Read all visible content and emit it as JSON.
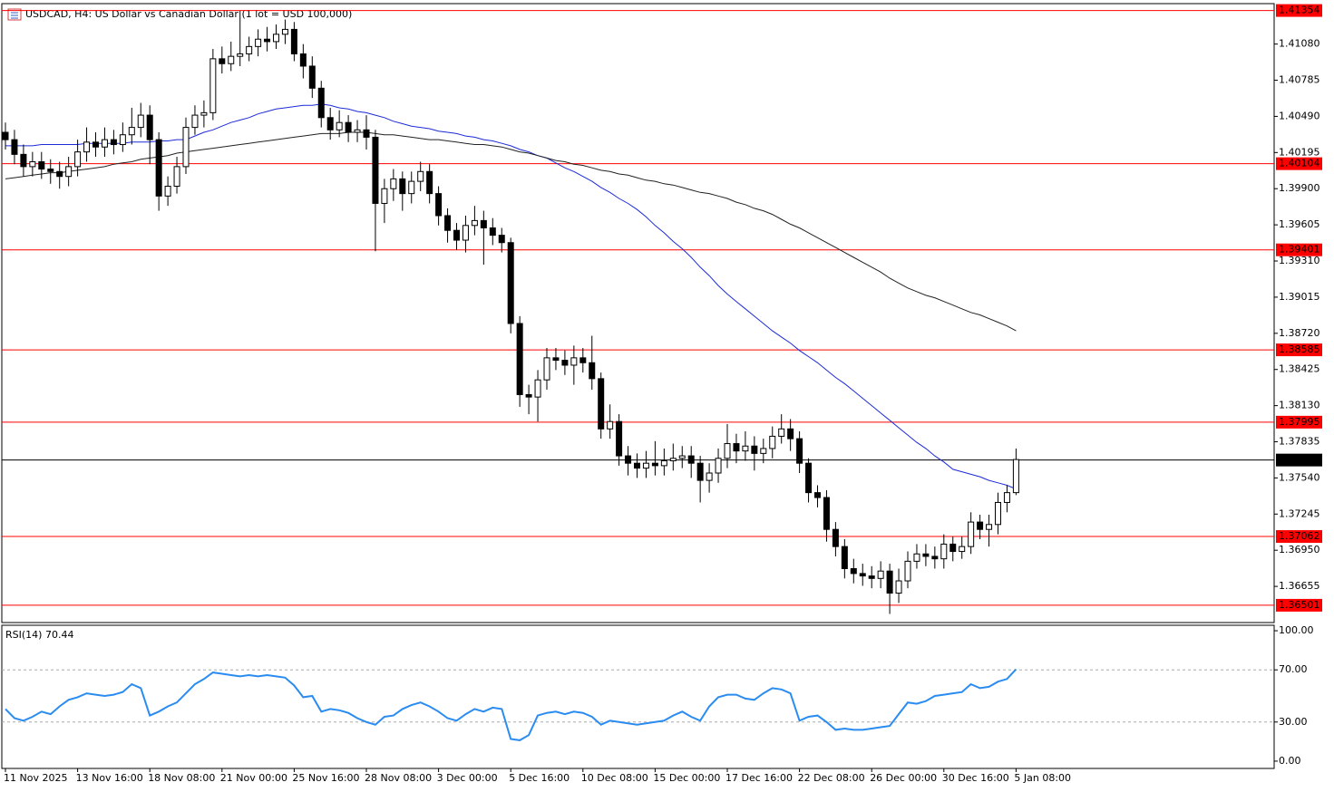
{
  "chart_data": [
    {
      "type": "candlestick",
      "title": "USDCAD, H4:  US Dollar vs Canadian Dollar (1 lot = USD 100,000)",
      "x": [
        "11 Nov 2025",
        null,
        null,
        null,
        null,
        null,
        null,
        null,
        "13 Nov 16:00",
        null,
        null,
        null,
        null,
        null,
        null,
        null,
        "18 Nov 08:00",
        null,
        null,
        null,
        null,
        null,
        null,
        null,
        "21 Nov 00:00",
        null,
        null,
        null,
        null,
        null,
        null,
        null,
        "25 Nov 16:00",
        null,
        null,
        null,
        null,
        null,
        null,
        null,
        "28 Nov 08:00",
        null,
        null,
        null,
        null,
        null,
        null,
        null,
        "3 Dec 00:00",
        null,
        null,
        null,
        null,
        null,
        null,
        null,
        "5 Dec 16:00",
        null,
        null,
        null,
        null,
        null,
        null,
        null,
        "10 Dec 08:00",
        null,
        null,
        null,
        null,
        null,
        null,
        null,
        "15 Dec 00:00",
        null,
        null,
        null,
        null,
        null,
        null,
        null,
        "17 Dec 16:00",
        null,
        null,
        null,
        null,
        null,
        null,
        null,
        "22 Dec 08:00",
        null,
        null,
        null,
        null,
        null,
        null,
        null,
        "26 Dec 00:00",
        null,
        null,
        null,
        null,
        null,
        null,
        null,
        "30 Dec 16:00",
        null,
        null,
        null,
        null,
        null,
        null,
        null,
        "5 Jan 08:00"
      ],
      "open": [
        1.4036,
        1.403,
        1.4018,
        1.4008,
        1.4012,
        1.4006,
        1.4004,
        1.4,
        1.4008,
        1.402,
        1.4028,
        1.4024,
        1.403,
        1.4026,
        1.4034,
        1.404,
        1.405,
        1.403,
        1.3984,
        1.3992,
        1.4008,
        1.404,
        1.405,
        1.4052,
        1.4096,
        1.4092,
        1.4098,
        1.41,
        1.4106,
        1.4112,
        1.411,
        1.4116,
        1.412,
        1.41,
        1.409,
        1.4072,
        1.4048,
        1.4038,
        1.4044,
        1.4036,
        1.4038,
        1.4032,
        1.3978,
        1.399,
        1.3998,
        1.3986,
        1.3996,
        1.4004,
        1.3986,
        1.3968,
        1.3956,
        1.3948,
        1.396,
        1.3964,
        1.3958,
        1.3952,
        1.3946,
        1.388,
        1.3822,
        1.382,
        1.3834,
        1.3852,
        1.385,
        1.3846,
        1.3852,
        1.3848,
        1.3835,
        1.3794,
        1.38,
        1.3772,
        1.3766,
        1.3762,
        1.3766,
        1.3764,
        1.3768,
        1.377,
        1.3772,
        1.3766,
        1.3752,
        1.3758,
        1.377,
        1.3782,
        1.3776,
        1.378,
        1.3774,
        1.3778,
        1.3788,
        1.3794,
        1.3786,
        1.3766,
        1.3742,
        1.3738,
        1.3712,
        1.3698,
        1.368,
        1.3676,
        1.3674,
        1.3672,
        1.3678,
        1.366,
        1.367,
        1.3686,
        1.3692,
        1.369,
        1.3688,
        1.37,
        1.3694,
        1.3698,
        1.3718,
        1.3712,
        1.3716,
        1.3734,
        1.3742
      ],
      "high": [
        1.4044,
        1.4038,
        1.4026,
        1.402,
        1.402,
        1.4014,
        1.4012,
        1.4016,
        1.403,
        1.404,
        1.4036,
        1.404,
        1.4038,
        1.4044,
        1.4056,
        1.406,
        1.4058,
        1.4036,
        1.4,
        1.4016,
        1.4048,
        1.4058,
        1.4062,
        1.4104,
        1.4106,
        1.411,
        1.4135,
        1.4114,
        1.412,
        1.4122,
        1.4124,
        1.4128,
        1.4126,
        1.4108,
        1.4098,
        1.4078,
        1.4056,
        1.4054,
        1.405,
        1.4046,
        1.405,
        1.4038,
        1.3998,
        1.4006,
        1.4004,
        1.4004,
        1.4012,
        1.401,
        1.3992,
        1.3974,
        1.3962,
        1.3968,
        1.3976,
        1.3972,
        1.3966,
        1.3958,
        1.395,
        1.3886,
        1.383,
        1.3842,
        1.386,
        1.386,
        1.3858,
        1.3862,
        1.386,
        1.387,
        1.384,
        1.3814,
        1.3806,
        1.378,
        1.3774,
        1.3776,
        1.3784,
        1.3778,
        1.3782,
        1.378,
        1.378,
        1.3772,
        1.3766,
        1.3778,
        1.3798,
        1.379,
        1.3792,
        1.3788,
        1.3786,
        1.3796,
        1.3806,
        1.3802,
        1.3792,
        1.377,
        1.3748,
        1.3744,
        1.3718,
        1.3704,
        1.3688,
        1.3684,
        1.3682,
        1.3686,
        1.3684,
        1.368,
        1.3694,
        1.37,
        1.37,
        1.3698,
        1.3708,
        1.3706,
        1.3706,
        1.3726,
        1.3724,
        1.3724,
        1.3742,
        1.3748,
        1.3778
      ],
      "low": [
        1.4022,
        1.401,
        1.4,
        1.4,
        1.3998,
        1.3994,
        1.399,
        1.3992,
        1.4,
        1.4012,
        1.4016,
        1.4016,
        1.4018,
        1.402,
        1.4026,
        1.4032,
        1.401,
        1.3972,
        1.3976,
        1.3986,
        1.4002,
        1.4034,
        1.404,
        1.4046,
        1.4084,
        1.4086,
        1.409,
        1.4094,
        1.4098,
        1.4102,
        1.4104,
        1.4108,
        1.4094,
        1.408,
        1.4064,
        1.404,
        1.403,
        1.4032,
        1.4028,
        1.4028,
        1.4022,
        1.3939,
        1.3962,
        1.398,
        1.3972,
        1.3978,
        1.3988,
        1.3978,
        1.396,
        1.3946,
        1.394,
        1.3938,
        1.3952,
        1.3928,
        1.3944,
        1.3938,
        1.3872,
        1.3812,
        1.3806,
        1.38,
        1.3826,
        1.3842,
        1.3838,
        1.383,
        1.384,
        1.3826,
        1.3786,
        1.3786,
        1.3764,
        1.3756,
        1.3754,
        1.3754,
        1.3756,
        1.3756,
        1.376,
        1.3762,
        1.3754,
        1.3734,
        1.3742,
        1.375,
        1.3762,
        1.3766,
        1.3768,
        1.376,
        1.3766,
        1.377,
        1.3782,
        1.3776,
        1.3758,
        1.3734,
        1.373,
        1.3702,
        1.369,
        1.3672,
        1.3668,
        1.3666,
        1.3664,
        1.3664,
        1.3643,
        1.3652,
        1.3664,
        1.368,
        1.3682,
        1.368,
        1.368,
        1.3686,
        1.3688,
        1.3692,
        1.3704,
        1.3698,
        1.3708,
        1.3726,
        1.374
      ],
      "close": [
        1.403,
        1.4018,
        1.4008,
        1.4012,
        1.4006,
        1.4004,
        1.4,
        1.4008,
        1.402,
        1.4028,
        1.4024,
        1.403,
        1.4026,
        1.4034,
        1.404,
        1.405,
        1.403,
        1.3984,
        1.3992,
        1.4008,
        1.404,
        1.405,
        1.4052,
        1.4096,
        1.4092,
        1.4098,
        1.41,
        1.4106,
        1.4112,
        1.411,
        1.4116,
        1.412,
        1.41,
        1.409,
        1.4072,
        1.4048,
        1.4038,
        1.4044,
        1.4036,
        1.4038,
        1.4032,
        1.3978,
        1.399,
        1.3998,
        1.3986,
        1.3996,
        1.4004,
        1.3986,
        1.3968,
        1.3956,
        1.3948,
        1.396,
        1.3964,
        1.3958,
        1.3952,
        1.3946,
        1.388,
        1.3822,
        1.382,
        1.3834,
        1.3852,
        1.385,
        1.3846,
        1.3852,
        1.3848,
        1.3835,
        1.3794,
        1.38,
        1.3772,
        1.3766,
        1.3762,
        1.3766,
        1.3764,
        1.3768,
        1.377,
        1.3772,
        1.3766,
        1.3752,
        1.3758,
        1.377,
        1.3782,
        1.3776,
        1.378,
        1.3774,
        1.3778,
        1.3788,
        1.3794,
        1.3786,
        1.3766,
        1.3742,
        1.3738,
        1.3712,
        1.3698,
        1.368,
        1.3676,
        1.3674,
        1.3672,
        1.3678,
        1.366,
        1.367,
        1.3686,
        1.3692,
        1.369,
        1.3688,
        1.37,
        1.3694,
        1.3698,
        1.3718,
        1.3712,
        1.3716,
        1.3734,
        1.3742,
        1.3769
      ],
      "up_color": "#ffffff",
      "down_color": "#000000",
      "wick_color": "#000000",
      "lines": [
        {
          "color": "#1c2bd8",
          "values": [
            1.4025,
            1.4025,
            1.4025,
            1.4025,
            1.4026,
            1.4026,
            1.4026,
            1.4026,
            1.4026,
            1.4027,
            1.4027,
            1.4027,
            1.4027,
            1.4027,
            1.4028,
            1.4028,
            1.4028,
            1.4029,
            1.4029,
            1.403,
            1.403,
            1.4033,
            1.4036,
            1.4038,
            1.4041,
            1.4044,
            1.4046,
            1.4048,
            1.4051,
            1.4053,
            1.4055,
            1.4056,
            1.4057,
            1.4058,
            1.4058,
            1.4059,
            1.4058,
            1.4056,
            1.4055,
            1.4053,
            1.4052,
            1.405,
            1.4048,
            1.4045,
            1.4043,
            1.4041,
            1.404,
            1.4039,
            1.4037,
            1.4036,
            1.4035,
            1.4033,
            1.4032,
            1.403,
            1.4029,
            1.4027,
            1.4025,
            1.4022,
            1.402,
            1.4017,
            1.4015,
            1.4011,
            1.4007,
            1.4004,
            1.4,
            1.3996,
            1.3991,
            1.3987,
            1.3982,
            1.3978,
            1.3973,
            1.3967,
            1.396,
            1.3954,
            1.3947,
            1.3941,
            1.3934,
            1.3926,
            1.3919,
            1.3911,
            1.3904,
            1.3898,
            1.3892,
            1.3886,
            1.388,
            1.3874,
            1.3869,
            1.3864,
            1.3858,
            1.3853,
            1.3848,
            1.3842,
            1.3836,
            1.3831,
            1.3825,
            1.3819,
            1.3813,
            1.3807,
            1.3801,
            1.3795,
            1.3789,
            1.3783,
            1.3778,
            1.3772,
            1.3767,
            1.3761,
            1.3759,
            1.3757,
            1.3755,
            1.3752,
            1.375,
            1.3748,
            1.3745
          ]
        },
        {
          "color": "#222222",
          "values": [
            1.3998,
            1.3999,
            1.4,
            1.4001,
            1.4002,
            1.4003,
            1.4003,
            1.4004,
            1.4005,
            1.4006,
            1.4007,
            1.4008,
            1.401,
            1.4011,
            1.4012,
            1.4014,
            1.4015,
            1.4016,
            1.4017,
            1.4019,
            1.402,
            1.4021,
            1.4022,
            1.4023,
            1.4024,
            1.4025,
            1.4026,
            1.4027,
            1.4028,
            1.4029,
            1.403,
            1.4031,
            1.4032,
            1.4033,
            1.4034,
            1.4035,
            1.4035,
            1.4035,
            1.4036,
            1.4036,
            1.4036,
            1.4035,
            1.4034,
            1.4034,
            1.4033,
            1.4032,
            1.4031,
            1.403,
            1.403,
            1.4029,
            1.4028,
            1.4027,
            1.4026,
            1.4026,
            1.4025,
            1.4024,
            1.4022,
            1.402,
            1.4019,
            1.4017,
            1.4015,
            1.4013,
            1.4012,
            1.401,
            1.4009,
            1.4007,
            1.4005,
            1.4004,
            1.4002,
            1.4001,
            1.3999,
            1.3997,
            1.3996,
            1.3994,
            1.3993,
            1.3991,
            1.3989,
            1.3987,
            1.3986,
            1.3984,
            1.3982,
            1.3979,
            1.3977,
            1.3974,
            1.3972,
            1.3969,
            1.3965,
            1.3961,
            1.3958,
            1.3954,
            1.395,
            1.3946,
            1.3942,
            1.3938,
            1.3934,
            1.393,
            1.3926,
            1.3922,
            1.3917,
            1.3913,
            1.3909,
            1.3906,
            1.3903,
            1.3901,
            1.3898,
            1.3895,
            1.3892,
            1.3889,
            1.3887,
            1.3884,
            1.3881,
            1.3878,
            1.3874
          ]
        }
      ],
      "levels": [
        {
          "value": 1.41354,
          "color": "#ff0000"
        },
        {
          "value": 1.40104,
          "color": "#ff0000"
        },
        {
          "value": 1.39401,
          "color": "#ff0000"
        },
        {
          "value": 1.38585,
          "color": "#ff0000"
        },
        {
          "value": 1.37995,
          "color": "#ff0000"
        },
        {
          "value": 1.37062,
          "color": "#ff0000"
        },
        {
          "value": 1.36501,
          "color": "#ff0000"
        }
      ],
      "last_price": 1.37686,
      "last_price_color": "#000000",
      "ylim": [
        1.3636,
        1.4141
      ],
      "yticks": [
        {
          "value": 1.4108,
          "label": "1.41080"
        },
        1.40785,
        {
          "value": 1.4049,
          "label": "1.40490"
        },
        1.40195,
        {
          "value": 1.399,
          "label": "1.39900"
        },
        1.39605,
        {
          "value": 1.3931,
          "label": "1.39310"
        },
        1.39015,
        {
          "value": 1.3872,
          "label": "1.38720"
        },
        1.38425,
        {
          "value": 1.3813,
          "label": "1.38130"
        },
        1.37835,
        {
          "value": 1.3754,
          "label": "1.37540"
        },
        1.37245,
        {
          "value": 1.3695,
          "label": "1.36950"
        },
        1.36655
      ]
    },
    {
      "type": "line",
      "title": "RSI(14) 70.44",
      "color": "#2a8cf0",
      "values": [
        40,
        33,
        31,
        34,
        38,
        36,
        42,
        47,
        49,
        52,
        51,
        50,
        51,
        53,
        59,
        56,
        35,
        38,
        42,
        45,
        52,
        59,
        63,
        68,
        67,
        66,
        65,
        66,
        65,
        66,
        65,
        64,
        58,
        49,
        50,
        38,
        40,
        39,
        37,
        33,
        30,
        28,
        34,
        35,
        40,
        43,
        45,
        42,
        38,
        33,
        31,
        36,
        40,
        38,
        41,
        40,
        17,
        16,
        20,
        35,
        37,
        38,
        36,
        38,
        37,
        34,
        28,
        31,
        30,
        29,
        28,
        29,
        30,
        31,
        35,
        38,
        34,
        31,
        42,
        49,
        51,
        51,
        48,
        47,
        52,
        56,
        55,
        52,
        31,
        34,
        35,
        30,
        24,
        25,
        24,
        24,
        25,
        26,
        27,
        36,
        45,
        44,
        46,
        50,
        51,
        52,
        53,
        59,
        56,
        57,
        61,
        63,
        70.44
      ],
      "levels": [
        30,
        70
      ],
      "ylim": [
        -5.6,
        104.2
      ],
      "yticks": [
        {
          "value": 0,
          "label": "0.00"
        },
        {
          "value": 30,
          "label": "30.00"
        },
        {
          "value": 70,
          "label": "70.00"
        },
        {
          "value": 100,
          "label": "100.00"
        }
      ]
    }
  ]
}
